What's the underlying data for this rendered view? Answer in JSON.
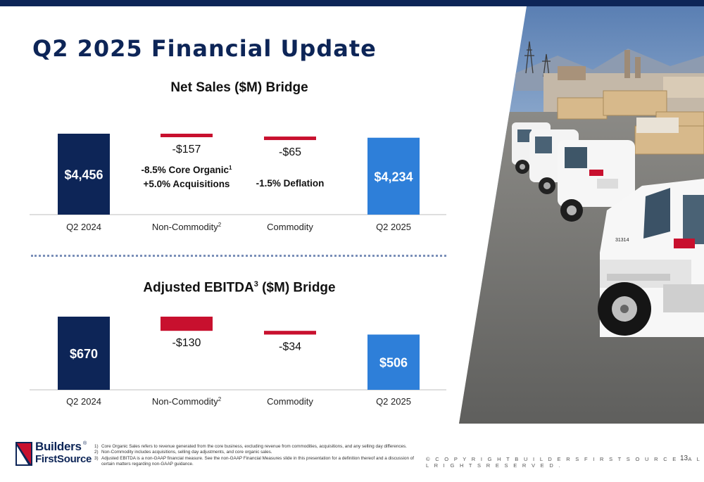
{
  "slide": {
    "title": "Q2 2025 Financial Update",
    "page_number": "13",
    "copyright": "© C O P Y R I G H T   B U I L D E R S   F I R S T S O U R C E .   A L L   R I G H T S   R E S E R V E D .",
    "logo": {
      "line1": "Builders",
      "line2": "FirstSource",
      "reg": "®"
    }
  },
  "colors": {
    "navy": "#0d2557",
    "blue": "#2e7fd9",
    "red": "#c8102e",
    "axis": "#bfbfbf"
  },
  "chart_data": [
    {
      "type": "bar",
      "subtype": "waterfall",
      "title": "Net Sales ($M) Bridge",
      "categories": [
        "Q2 2024",
        "Non-Commodity",
        "Commodity",
        "Q2 2025"
      ],
      "category_superscripts": [
        "",
        "2",
        "",
        ""
      ],
      "values": [
        4456,
        -157,
        -65,
        4234
      ],
      "value_labels": [
        "$4,456",
        "-$157",
        "-$65",
        "$4,234"
      ],
      "bar_kinds": [
        "total",
        "decrease",
        "decrease",
        "total"
      ],
      "annotations": [
        {
          "category": "Non-Commodity",
          "lines": [
            "-8.5% Core Organic",
            "+5.0% Acquisitions"
          ],
          "superscripts": [
            "1",
            ""
          ]
        },
        {
          "category": "Commodity",
          "lines": [
            "-1.5% Deflation"
          ],
          "superscripts": [
            ""
          ]
        }
      ]
    },
    {
      "type": "bar",
      "subtype": "waterfall",
      "title": "Adjusted EBITDA",
      "title_superscript": "3",
      "title_suffix": " ($M) Bridge",
      "categories": [
        "Q2 2024",
        "Non-Commodity",
        "Commodity",
        "Q2 2025"
      ],
      "category_superscripts": [
        "",
        "2",
        "",
        ""
      ],
      "values": [
        670,
        -130,
        -34,
        506
      ],
      "value_labels": [
        "$670",
        "-$130",
        "-$34",
        "$506"
      ],
      "bar_kinds": [
        "total",
        "decrease",
        "decrease",
        "total"
      ],
      "annotations": []
    }
  ],
  "footnotes": [
    {
      "num": "1)",
      "text": "Core Organic Sales refers to revenue generated from the core business, excluding revenue from commodities, acquisitions, and any selling day differences."
    },
    {
      "num": "2)",
      "text": "Non-Commodity includes acquisitions, selling day adjustments, and core organic sales."
    },
    {
      "num": "3)",
      "text": "Adjusted EBITDA is a non-GAAP financial measure. See the non-GAAP Financial Measures slide in this presentation for a definition thereof and a discussion of certain matters regarding non-GAAP guidance."
    }
  ],
  "photo": {
    "truck_number": "31314"
  }
}
